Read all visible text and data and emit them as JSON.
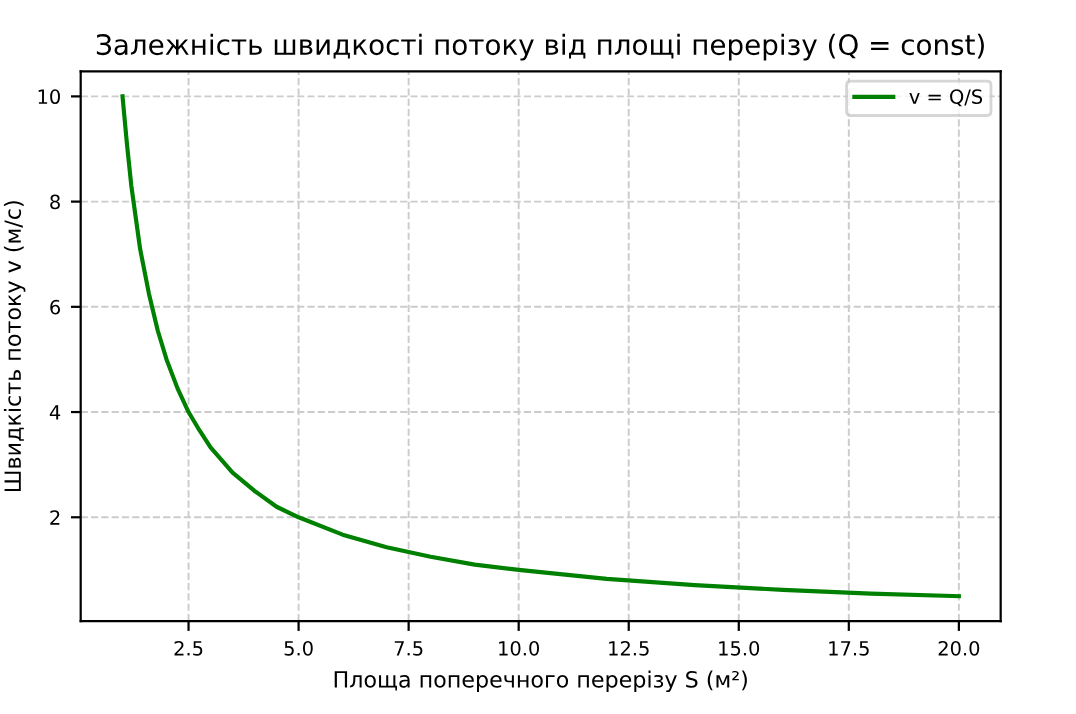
{
  "chart_data": {
    "type": "line",
    "title": "Залежність швидкості потоку від площі перерізу (Q = const)",
    "xlabel": "Площа поперечного перерізу S (м²)",
    "ylabel": "Швидкість потоку v (м/с)",
    "x": [
      1,
      1.1,
      1.2,
      1.3,
      1.4,
      1.6,
      1.8,
      2,
      2.25,
      2.5,
      2.75,
      3,
      3.5,
      4,
      4.5,
      5,
      6,
      7,
      8,
      9,
      10,
      12,
      14,
      16,
      18,
      20
    ],
    "series": [
      {
        "name": "v = Q/S",
        "color": "#008000",
        "values": [
          10,
          9.1,
          8.3,
          7.7,
          7.1,
          6.25,
          5.55,
          5,
          4.45,
          4,
          3.65,
          3.33,
          2.85,
          2.5,
          2.2,
          2,
          1.67,
          1.43,
          1.25,
          1.1,
          1,
          0.83,
          0.71,
          0.62,
          0.55,
          0.5
        ]
      }
    ],
    "xlim": [
      0.05,
      20.95
    ],
    "ylim": [
      0.025,
      10.475
    ],
    "xticks": [
      {
        "value": 2.5,
        "label": "2.5"
      },
      {
        "value": 5,
        "label": "5.0"
      },
      {
        "value": 7.5,
        "label": "7.5"
      },
      {
        "value": 10,
        "label": "10.0"
      },
      {
        "value": 12.5,
        "label": "12.5"
      },
      {
        "value": 15,
        "label": "15.0"
      },
      {
        "value": 17.5,
        "label": "17.5"
      },
      {
        "value": 20,
        "label": "20.0"
      }
    ],
    "yticks": [
      2,
      4,
      6,
      8,
      10
    ],
    "grid": true,
    "legend": "top right",
    "marker": "none",
    "line_style": "solid"
  }
}
